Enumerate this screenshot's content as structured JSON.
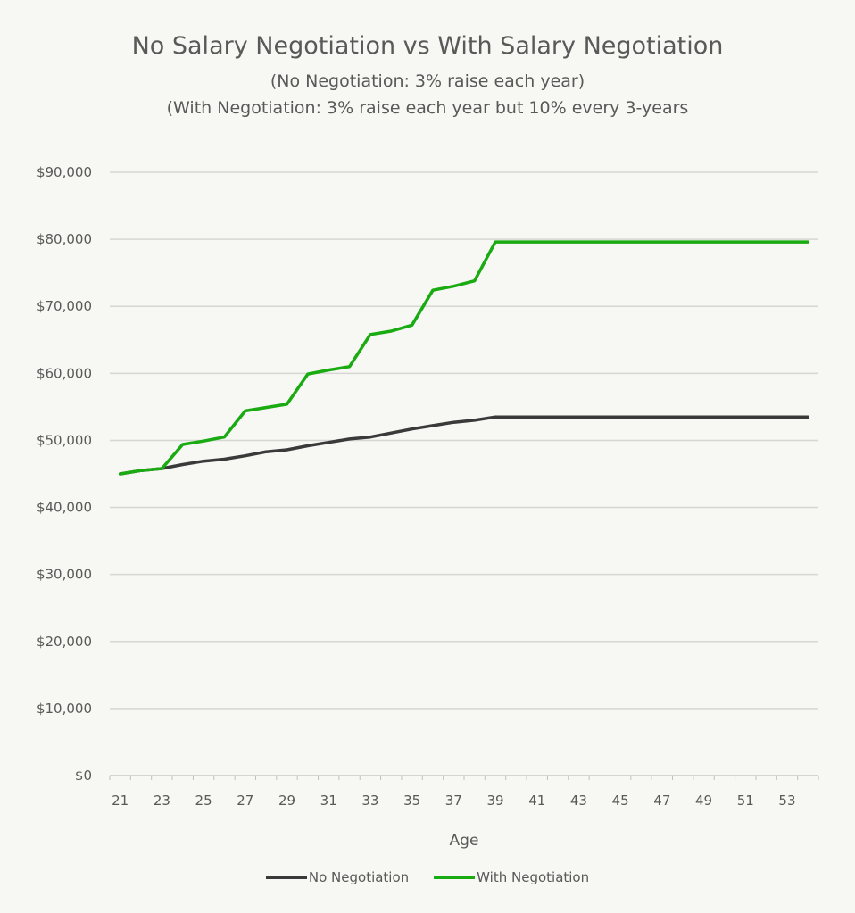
{
  "chart_data": {
    "type": "line",
    "title": "No Salary Negotiation vs With Salary Negotiation",
    "subtitle": [
      "(No Negotiation: 3% raise each year)",
      "(With Negotiation: 3% raise each year but 10% every 3-years"
    ],
    "xlabel": "Age",
    "ylabel": "",
    "x": [
      21,
      22,
      23,
      24,
      25,
      26,
      27,
      28,
      29,
      30,
      31,
      32,
      33,
      34,
      35,
      36,
      37,
      38,
      39,
      40,
      41,
      42,
      43,
      44,
      45,
      46,
      47,
      48,
      49,
      50,
      51,
      52,
      53,
      54
    ],
    "x_tick_labels": [
      "21",
      "23",
      "25",
      "27",
      "29",
      "31",
      "33",
      "35",
      "37",
      "39",
      "41",
      "43",
      "45",
      "47",
      "49",
      "51",
      "53"
    ],
    "y_tick_labels": [
      "$0",
      "$10,000",
      "$20,000",
      "$30,000",
      "$40,000",
      "$50,000",
      "$60,000",
      "$70,000",
      "$80,000",
      "$90,000"
    ],
    "ylim": [
      0,
      90000
    ],
    "grid": true,
    "legend_position": "bottom",
    "series": [
      {
        "name": "No Negotiation",
        "color": "#3a3a3a",
        "values": [
          45000,
          45500,
          45800,
          46400,
          46900,
          47200,
          47700,
          48300,
          48600,
          49200,
          49700,
          50200,
          50500,
          51100,
          51700,
          52200,
          52700,
          53000,
          53500,
          53500,
          53500,
          53500,
          53500,
          53500,
          53500,
          53500,
          53500,
          53500,
          53500,
          53500,
          53500,
          53500,
          53500,
          53500
        ]
      },
      {
        "name": "With Negotiation",
        "color": "#1aab12",
        "values": [
          45000,
          45500,
          45800,
          49400,
          49900,
          50500,
          54400,
          54900,
          55400,
          59900,
          60500,
          61000,
          65800,
          66300,
          67200,
          72400,
          73000,
          73800,
          79600,
          79600,
          79600,
          79600,
          79600,
          79600,
          79600,
          79600,
          79600,
          79600,
          79600,
          79600,
          79600,
          79600,
          79600,
          79600
        ]
      }
    ]
  }
}
